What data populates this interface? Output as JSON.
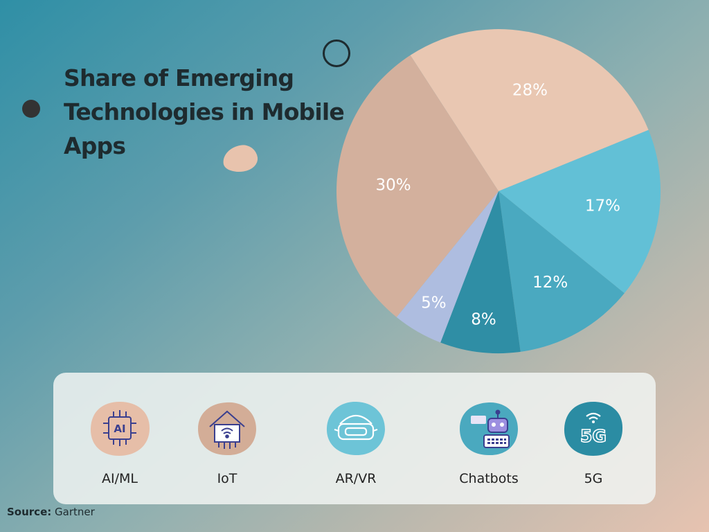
{
  "title": "Share of Emerging Technologies in Mobile Apps",
  "chart_data": {
    "type": "pie",
    "title": "Share of Emerging Technologies in Mobile Apps",
    "slices": [
      {
        "label": "28%",
        "value": 28,
        "color": "#e9c7b2"
      },
      {
        "label": "17%",
        "value": 17,
        "color": "#62c0d6"
      },
      {
        "label": "12%",
        "value": 12,
        "color": "#4aa9c0"
      },
      {
        "label": "8%",
        "value": 8,
        "color": "#2f8ea5"
      },
      {
        "label": "5%",
        "value": 5,
        "color": "#aebde0"
      },
      {
        "label": "30%",
        "value": 30,
        "color": "#d3b09d"
      }
    ]
  },
  "technologies": [
    {
      "label": "AI/ML",
      "icon": "ai-chip-icon",
      "color": "#e6bea8"
    },
    {
      "label": "IoT",
      "icon": "smart-home-icon",
      "color": "#d3ad97"
    },
    {
      "label": "AR/VR",
      "icon": "vr-headset-icon",
      "color": "#6dc4d7"
    },
    {
      "label": "Chatbots",
      "icon": "chatbot-icon",
      "color": "#4aa9bf"
    },
    {
      "label": "5G",
      "icon": "5g-icon",
      "color": "#2b8ca3"
    }
  ],
  "source": {
    "label": "Source:",
    "text": "Gartner"
  }
}
